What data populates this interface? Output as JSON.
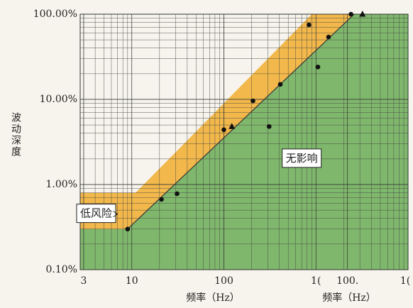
{
  "chart_data": {
    "type": "scatter",
    "ylabel": "波动深度",
    "xlabel": "频率（Hz）",
    "xlabel_repeat": "频率（Hz）",
    "xlog": true,
    "ylog": true,
    "grid": true,
    "xlim": [
      2.75,
      10000
    ],
    "ylim": [
      0.1,
      100
    ],
    "xticks": [
      3,
      10,
      100,
      {
        "value": 1000,
        "label": "1("
      },
      {
        "value": 2200,
        "label": "100."
      },
      {
        "value": 10000,
        "label": "1("
      }
    ],
    "yticks": [
      {
        "value": 0.1,
        "label": "0.10%"
      },
      {
        "value": 1,
        "label": "1.00%"
      },
      {
        "value": 10,
        "label": "10.00%"
      },
      {
        "value": 100,
        "label": "100.00%"
      }
    ],
    "areas": [
      {
        "color": "#f2b84b",
        "x": [
          2.75,
          2.75,
          11,
          900,
          2600,
          9
        ],
        "y": [
          0.3,
          0.8,
          0.8,
          100,
          100,
          0.3
        ]
      },
      {
        "color": "#7fb76c",
        "x": [
          2.75,
          2.75,
          9,
          2600,
          10000,
          10000
        ],
        "y": [
          0.1,
          0.3,
          0.3,
          100,
          100,
          0.1
        ]
      }
    ],
    "boundary": {
      "color": "#333333",
      "x": [
        9,
        2600
      ],
      "y": [
        0.3,
        100
      ]
    },
    "series": [
      {
        "marker": "circle",
        "color": "#111111",
        "x": [
          9,
          21,
          31,
          100,
          207,
          310,
          410,
          840,
          1050,
          1370,
          2400
        ],
        "values": [
          0.3,
          0.67,
          0.78,
          4.4,
          9.6,
          4.8,
          15,
          75,
          24,
          54,
          100
        ]
      },
      {
        "marker": "triangle",
        "color": "#111111",
        "x": [
          122,
          3200
        ],
        "values": [
          4.8,
          100
        ]
      }
    ],
    "annotations": [
      {
        "text": "无影响",
        "x": 700,
        "y": 2
      },
      {
        "text": "低风险",
        "x": 4.1,
        "y": 0.45,
        "arrow_to": 7
      }
    ]
  }
}
